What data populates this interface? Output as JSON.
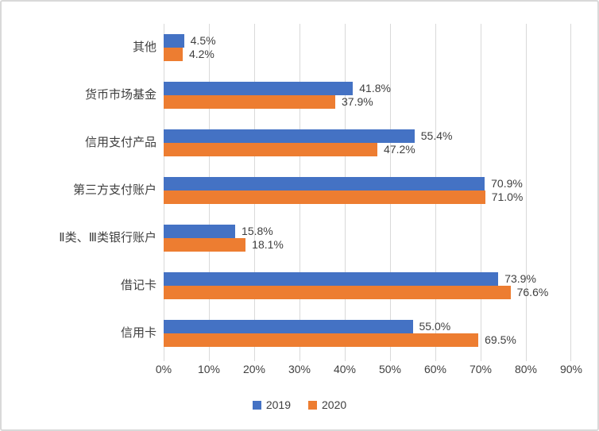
{
  "chart_data": {
    "type": "bar",
    "orientation": "horizontal",
    "title": "",
    "categories": [
      "其他",
      "货币市场基金",
      "信用支付产品",
      "第三方支付账户",
      "Ⅱ类、Ⅲ类银行账户",
      "借记卡",
      "信用卡"
    ],
    "series": [
      {
        "name": "2019",
        "color": "#4472C4",
        "values": [
          4.5,
          41.8,
          55.4,
          70.9,
          15.8,
          73.9,
          55.0
        ],
        "labels": [
          "4.5%",
          "41.8%",
          "55.4%",
          "70.9%",
          "15.8%",
          "73.9%",
          "55.0%"
        ]
      },
      {
        "name": "2020",
        "color": "#ED7D31",
        "values": [
          4.2,
          37.9,
          47.2,
          71.0,
          18.1,
          76.6,
          69.5
        ],
        "labels": [
          "4.2%",
          "37.9%",
          "47.2%",
          "71.0%",
          "18.1%",
          "76.6%",
          "69.5%"
        ]
      }
    ],
    "xlim": [
      0,
      90
    ],
    "x_ticks": [
      "0%",
      "10%",
      "20%",
      "30%",
      "40%",
      "50%",
      "60%",
      "70%",
      "80%",
      "90%"
    ],
    "grid": "vertical",
    "legend_position": "bottom"
  },
  "colors": {
    "gridline": "#D9D9D9",
    "border": "#D9D9D9",
    "text": "#3F3F3F",
    "background": "#FFFFFF"
  }
}
